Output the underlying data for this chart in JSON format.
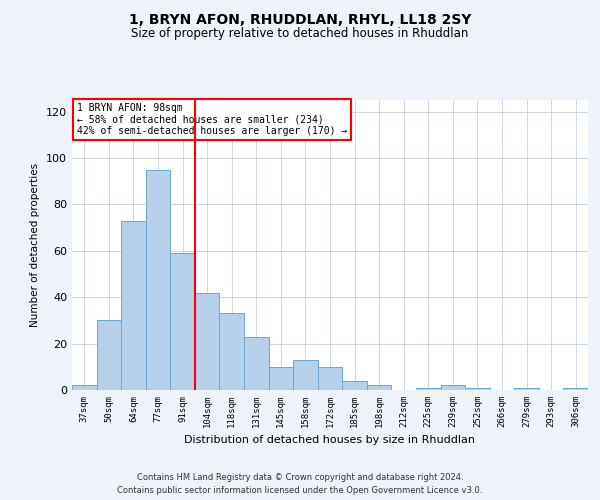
{
  "title": "1, BRYN AFON, RHUDDLAN, RHYL, LL18 2SY",
  "subtitle": "Size of property relative to detached houses in Rhuddlan",
  "xlabel": "Distribution of detached houses by size in Rhuddlan",
  "ylabel": "Number of detached properties",
  "categories": [
    "37sqm",
    "50sqm",
    "64sqm",
    "77sqm",
    "91sqm",
    "104sqm",
    "118sqm",
    "131sqm",
    "145sqm",
    "158sqm",
    "172sqm",
    "185sqm",
    "198sqm",
    "212sqm",
    "225sqm",
    "239sqm",
    "252sqm",
    "266sqm",
    "279sqm",
    "293sqm",
    "306sqm"
  ],
  "values": [
    2,
    30,
    73,
    95,
    59,
    42,
    33,
    23,
    10,
    13,
    10,
    4,
    2,
    0,
    1,
    2,
    1,
    0,
    1,
    0,
    1
  ],
  "bar_color": "#b8d0ea",
  "bar_edge_color": "#6aaad4",
  "vline_x": 4.5,
  "vline_color": "red",
  "ylim": [
    0,
    125
  ],
  "yticks": [
    0,
    20,
    40,
    60,
    80,
    100,
    120
  ],
  "annotation_title": "1 BRYN AFON: 98sqm",
  "annotation_line1": "← 58% of detached houses are smaller (234)",
  "annotation_line2": "42% of semi-detached houses are larger (170) →",
  "footer_line1": "Contains HM Land Registry data © Crown copyright and database right 2024.",
  "footer_line2": "Contains public sector information licensed under the Open Government Licence v3.0.",
  "background_color": "#eef2f9",
  "plot_background": "#ffffff",
  "grid_color": "#c8d0de"
}
